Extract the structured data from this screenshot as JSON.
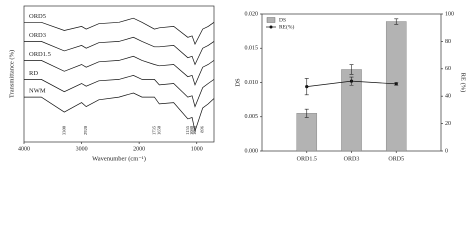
{
  "chart_data": [
    {
      "type": "line",
      "x_label": "Wavenumber (cm⁻¹)",
      "y_label": "Transmittance (%)",
      "x": [
        4000,
        3700,
        3300,
        3000,
        2920,
        2700,
        2350,
        2100,
        1950,
        1735,
        1650,
        1400,
        1155,
        1080,
        1030,
        896,
        800,
        700
      ],
      "xlim": [
        4000,
        700
      ],
      "xticks": [
        4000,
        3000,
        2000,
        1000
      ],
      "ylim": [
        0,
        100
      ],
      "series": [
        {
          "name": "ORD5",
          "color": "#111",
          "values": [
            88,
            88,
            82,
            85,
            83,
            87,
            88,
            91,
            88,
            83,
            84,
            85,
            77,
            78,
            72,
            83,
            85,
            88
          ]
        },
        {
          "name": "ORD3",
          "color": "#111",
          "values": [
            74,
            74,
            67,
            71,
            69,
            73,
            74,
            77,
            74,
            70,
            70,
            71,
            62,
            63,
            57,
            69,
            71,
            74
          ]
        },
        {
          "name": "ORD1.5",
          "color": "#111",
          "values": [
            60,
            60,
            52,
            57,
            55,
            59,
            60,
            63,
            60,
            57,
            56,
            57,
            48,
            49,
            42,
            55,
            57,
            60
          ]
        },
        {
          "name": "RD",
          "color": "#111",
          "values": [
            46,
            46,
            37,
            43,
            41,
            45,
            46,
            49,
            46,
            46,
            42,
            43,
            33,
            34,
            26,
            40,
            43,
            46
          ]
        },
        {
          "name": "NWM",
          "color": "#111",
          "values": [
            33,
            33,
            22,
            29,
            26,
            31,
            33,
            36,
            33,
            33,
            28,
            29,
            17,
            18,
            8,
            25,
            28,
            32
          ]
        }
      ],
      "annotations": [
        {
          "text": "3300",
          "x": 3300
        },
        {
          "text": "2920",
          "x": 2920
        },
        {
          "text": "1735",
          "x": 1735
        },
        {
          "text": "1650",
          "x": 1650
        },
        {
          "text": "1155",
          "x": 1155
        },
        {
          "text": "1080",
          "x": 1080
        },
        {
          "text": "1030",
          "x": 1030
        },
        {
          "text": "896",
          "x": 896
        }
      ]
    },
    {
      "type": "bar",
      "y_label": "DS",
      "y2_label": "RE (%)",
      "categories": [
        "ORD1.5",
        "ORD3",
        "ORD5"
      ],
      "ylim": [
        0,
        0.02
      ],
      "yticks": [
        {
          "value": 0,
          "label": "0.000"
        },
        {
          "value": 0.005,
          "label": "0.005"
        },
        {
          "value": 0.01,
          "label": "0.010"
        },
        {
          "value": 0.015,
          "label": "0.015"
        },
        {
          "value": 0.02,
          "label": "0.020"
        }
      ],
      "y2lim": [
        0,
        100
      ],
      "y2ticks": [
        0,
        20,
        40,
        60,
        80,
        100
      ],
      "legend": "upper-left",
      "series": [
        {
          "name": "DS",
          "type": "bar",
          "color": "#b3b3b3",
          "values": [
            0.0055,
            0.0119,
            0.0189
          ],
          "errors": [
            0.0006,
            0.0007,
            0.0004
          ]
        },
        {
          "name": "RE(%)",
          "type": "line",
          "axis": "y2",
          "color": "#111",
          "values": [
            47,
            51,
            49
          ],
          "errors": [
            6,
            3,
            1
          ]
        }
      ]
    }
  ]
}
